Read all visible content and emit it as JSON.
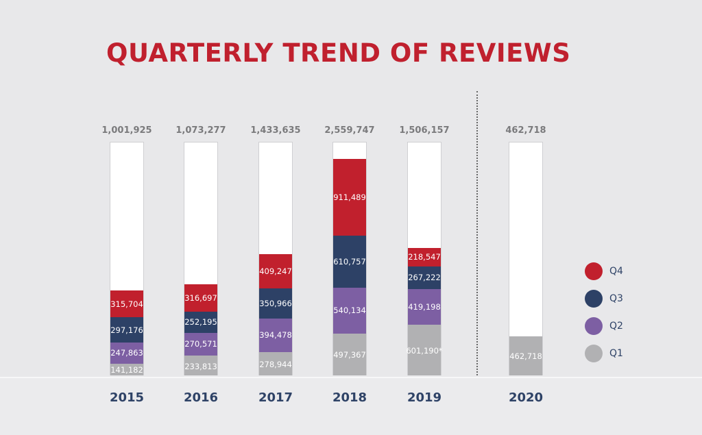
{
  "chart_data": {
    "type": "bar",
    "stacked": true,
    "title": "QUARTERLY TREND OF REVIEWS",
    "categories": [
      "2015",
      "2016",
      "2017",
      "2018",
      "2019",
      "2020"
    ],
    "totals": [
      "1,001,925",
      "1,073,277",
      "1,433,635",
      "2,559,747",
      "1,506,157",
      "462,718"
    ],
    "series": [
      {
        "name": "Q1",
        "color": "#b1b1b3",
        "values": [
          141182,
          233813,
          278944,
          497367,
          601190,
          462718
        ],
        "labels": [
          "141,182",
          "233,813",
          "278,944",
          "497,367",
          "601,190*",
          "462,718"
        ]
      },
      {
        "name": "Q2",
        "color": "#7d5fa3",
        "values": [
          247863,
          270571,
          394478,
          540134,
          419198,
          null
        ],
        "labels": [
          "247,863",
          "270,571",
          "394,478",
          "540,134",
          "419,198",
          ""
        ]
      },
      {
        "name": "Q3",
        "color": "#2d4166",
        "values": [
          297176,
          252195,
          350966,
          610757,
          267222,
          null
        ],
        "labels": [
          "297,176",
          "252,195",
          "350,966",
          "610,757",
          "267,222",
          ""
        ]
      },
      {
        "name": "Q4",
        "color": "#c1202d",
        "values": [
          315704,
          316697,
          409247,
          911489,
          218547,
          null
        ],
        "labels": [
          "315,704",
          "316,697",
          "409,247",
          "911,489",
          "218,547",
          ""
        ]
      }
    ],
    "ylim": [
      0,
      2760000
    ],
    "legend": "right",
    "grid": false
  }
}
